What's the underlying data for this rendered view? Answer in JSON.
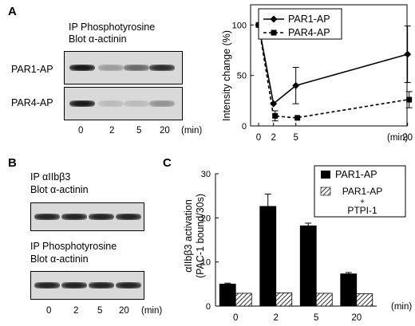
{
  "panelA": {
    "letter": "A",
    "title_line1": "IP Phosphotyrosine",
    "title_line2": "Blot α-actinin",
    "row_labels": [
      "PAR1-AP",
      "PAR4-AP"
    ],
    "time_labels": [
      "0",
      "2",
      "5",
      "20"
    ],
    "unit": "(min)",
    "band_intensity_par1": [
      0.95,
      0.3,
      0.55,
      0.85
    ],
    "band_intensity_par4": [
      0.95,
      0.15,
      0.15,
      0.35
    ]
  },
  "panelB": {
    "letter": "B",
    "blot1_line1": "IP αIIbβ3",
    "blot1_line2": "Blot α-actinin",
    "blot2_line1": "IP Phosphotyrosine",
    "blot2_line2": "Blot α-actinin",
    "time_labels": [
      "0",
      "2",
      "5",
      "20"
    ],
    "unit": "(min)",
    "band_intensity_blot1": [
      0.9,
      0.9,
      0.9,
      0.9
    ],
    "band_intensity_blot2": [
      0.9,
      0.9,
      0.9,
      0.9
    ]
  },
  "panelC_letter": "C",
  "chart_data": [
    {
      "type": "line",
      "ylabel": "Intensity change (%)",
      "xunit": "(min)",
      "x": [
        0,
        2,
        5,
        20
      ],
      "xticks": [
        "0",
        "2",
        "5",
        "20"
      ],
      "ylim": [
        0,
        120
      ],
      "yticks": [
        0,
        50,
        100
      ],
      "legend_position": "top-left",
      "series": [
        {
          "name": "PAR1-AP",
          "values": [
            100,
            22,
            40,
            71
          ],
          "errors": [
            0,
            0,
            18,
            28
          ],
          "style": "solid",
          "marker": "diamond"
        },
        {
          "name": "PAR4-AP",
          "values": [
            100,
            10,
            8,
            26
          ],
          "errors": [
            0,
            5,
            0,
            8
          ],
          "style": "dashed",
          "marker": "square"
        }
      ]
    },
    {
      "type": "bar",
      "ylabel_line1": "αIIbβ3 activation",
      "ylabel_line2": "(PAC-1 bound/30s)",
      "xunit": "(min)",
      "categories": [
        "0",
        "2",
        "5",
        "20"
      ],
      "ylim": [
        0,
        30
      ],
      "yticks": [
        0,
        10,
        20,
        30
      ],
      "legend_position": "top-right",
      "series": [
        {
          "name": "PAR1-AP",
          "values": [
            5,
            22.6,
            18.2,
            7.3
          ],
          "errors": [
            0.2,
            2.8,
            0.6,
            0.3
          ],
          "fill": "#000000"
        },
        {
          "name": "PAR1-AP + PTPI-1",
          "name_lines": [
            "PAR1-AP",
            "+",
            "PTPI-1"
          ],
          "values": [
            2.9,
            3.0,
            2.9,
            2.8
          ],
          "errors": [
            0,
            0,
            0,
            0
          ],
          "fill": "hatch"
        }
      ]
    }
  ]
}
